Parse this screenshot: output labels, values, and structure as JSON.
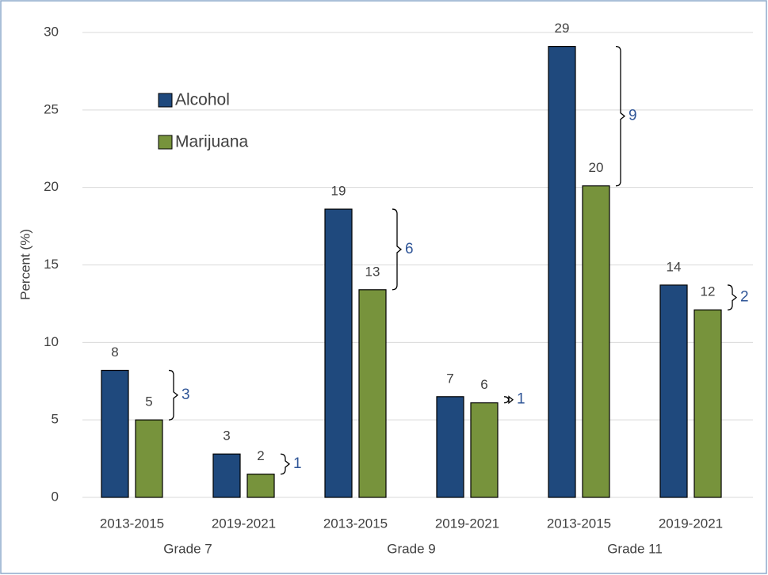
{
  "chart_data": {
    "type": "bar",
    "y_label": "Percent (%)",
    "categories": [
      "2013-2015",
      "2019-2021",
      "2013-2015",
      "2019-2021",
      "2013-2015",
      "2019-2021"
    ],
    "groups": [
      "Grade 7",
      "Grade 9",
      "Grade 11"
    ],
    "series": [
      {
        "name": "Alcohol",
        "color": "#1f497d",
        "values": [
          8.2,
          2.8,
          18.6,
          6.5,
          29.1,
          13.7
        ],
        "value_labels": [
          "8",
          "3",
          "19",
          "7",
          "29",
          "14"
        ]
      },
      {
        "name": "Marijuana",
        "color": "#77933c",
        "values": [
          5.0,
          1.5,
          13.4,
          6.1,
          20.1,
          12.1
        ],
        "value_labels": [
          "5",
          "2",
          "13",
          "6",
          "20",
          "12"
        ]
      }
    ],
    "differences": [
      3,
      1,
      6,
      1,
      9,
      2
    ],
    "ylim": [
      0,
      30
    ],
    "yticks": [
      0,
      5,
      10,
      15,
      20,
      25,
      30
    ],
    "grid": true
  }
}
